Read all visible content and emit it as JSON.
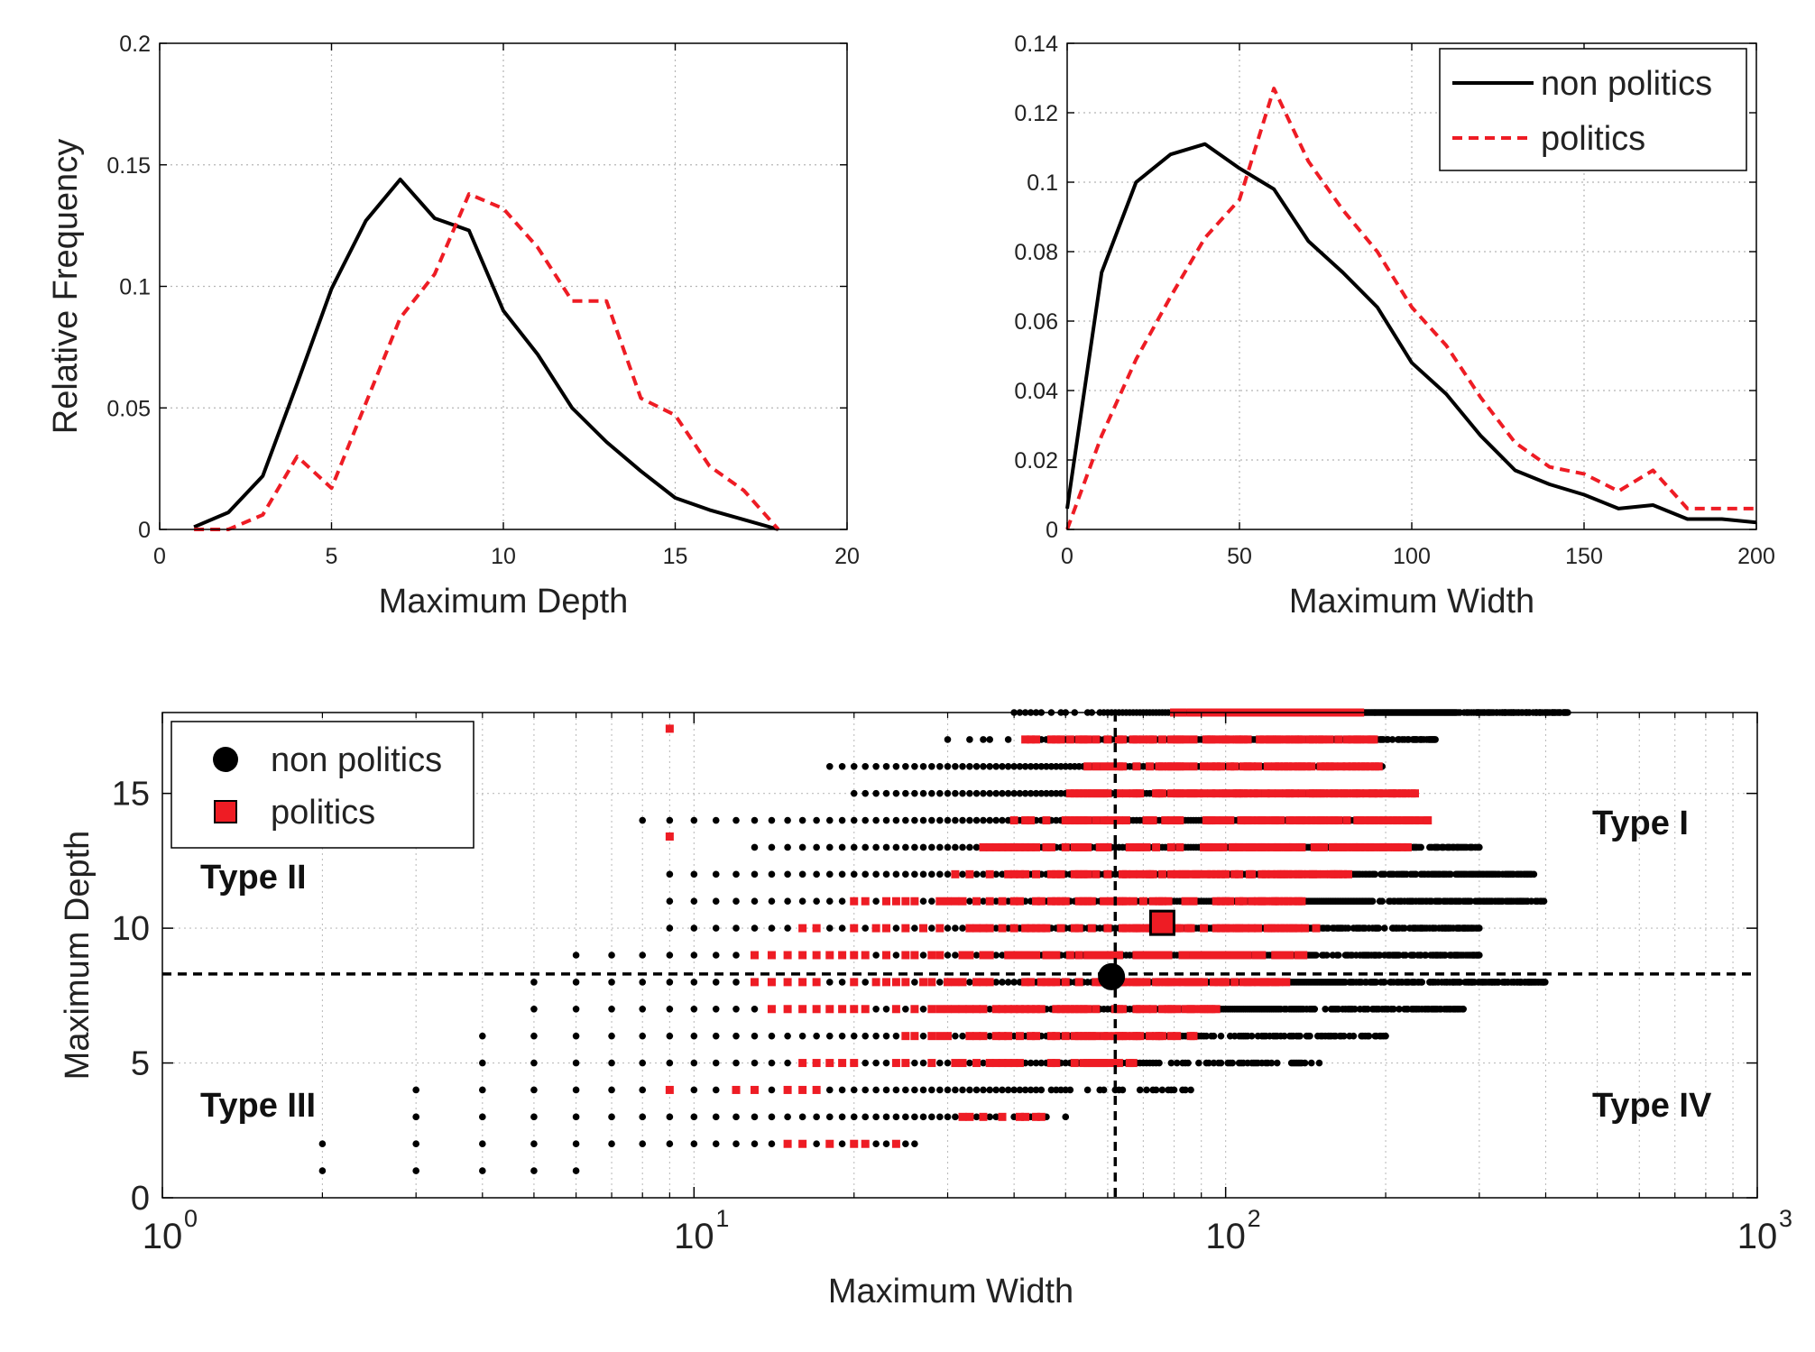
{
  "chart_data": [
    {
      "type": "line",
      "xlabel": "Maximum Depth",
      "ylabel": "Relative Frequency",
      "xlim": [
        0,
        20
      ],
      "ylim": [
        0,
        0.2
      ],
      "xticks": [
        0,
        5,
        10,
        15,
        20
      ],
      "yticks": [
        0,
        0.05,
        0.1,
        0.15,
        0.2
      ],
      "xtick_labels": [
        "0",
        "5",
        "10",
        "15",
        "20"
      ],
      "ytick_labels": [
        "0",
        "0.05",
        "0.1",
        "0.15",
        "0.2"
      ],
      "grid": true,
      "series": [
        {
          "name": "non politics",
          "color": "#000000",
          "style": "solid",
          "x": [
            1,
            2,
            3,
            4,
            5,
            6,
            7,
            8,
            9,
            10,
            11,
            12,
            13,
            14,
            15,
            16,
            17,
            18
          ],
          "y": [
            0.001,
            0.007,
            0.022,
            0.06,
            0.099,
            0.127,
            0.144,
            0.128,
            0.123,
            0.09,
            0.072,
            0.05,
            0.036,
            0.024,
            0.013,
            0.008,
            0.004,
            0.0
          ]
        },
        {
          "name": "politics",
          "color": "#ee1c24",
          "style": "dashed",
          "x": [
            1,
            2,
            3,
            4,
            5,
            6,
            7,
            8,
            9,
            10,
            11,
            12,
            13,
            14,
            15,
            16,
            17,
            18
          ],
          "y": [
            0.0,
            0.0,
            0.006,
            0.03,
            0.017,
            0.052,
            0.087,
            0.105,
            0.138,
            0.132,
            0.116,
            0.094,
            0.094,
            0.054,
            0.047,
            0.026,
            0.016,
            0.0
          ]
        }
      ]
    },
    {
      "type": "line",
      "xlabel": "Maximum Width",
      "ylabel": "",
      "xlim": [
        0,
        200
      ],
      "ylim": [
        0,
        0.14
      ],
      "xticks": [
        0,
        50,
        100,
        150,
        200
      ],
      "yticks": [
        0,
        0.02,
        0.04,
        0.06,
        0.08,
        0.1,
        0.12,
        0.14
      ],
      "xtick_labels": [
        "0",
        "50",
        "100",
        "150",
        "200"
      ],
      "ytick_labels": [
        "0",
        "0.02",
        "0.04",
        "0.06",
        "0.08",
        "0.1",
        "0.12",
        "0.14"
      ],
      "grid": true,
      "legend": {
        "position": "top-right",
        "entries": [
          {
            "label": "non politics",
            "color": "#000000",
            "style": "solid"
          },
          {
            "label": "politics",
            "color": "#ee1c24",
            "style": "dashed"
          }
        ]
      },
      "series": [
        {
          "name": "non politics",
          "color": "#000000",
          "style": "solid",
          "x": [
            0,
            10,
            20,
            30,
            40,
            50,
            60,
            70,
            80,
            90,
            100,
            110,
            120,
            130,
            140,
            150,
            160,
            170,
            180,
            190,
            200
          ],
          "y": [
            0.006,
            0.074,
            0.1,
            0.108,
            0.111,
            0.104,
            0.098,
            0.083,
            0.074,
            0.064,
            0.048,
            0.039,
            0.027,
            0.017,
            0.013,
            0.01,
            0.006,
            0.007,
            0.003,
            0.003,
            0.002
          ]
        },
        {
          "name": "politics",
          "color": "#ee1c24",
          "style": "dashed",
          "x": [
            0,
            10,
            20,
            30,
            40,
            50,
            60,
            70,
            80,
            90,
            100,
            110,
            120,
            130,
            140,
            150,
            160,
            170,
            180,
            190,
            200
          ],
          "y": [
            0.0,
            0.027,
            0.049,
            0.067,
            0.084,
            0.095,
            0.127,
            0.106,
            0.092,
            0.08,
            0.064,
            0.053,
            0.038,
            0.025,
            0.018,
            0.016,
            0.011,
            0.017,
            0.006,
            0.006,
            0.006
          ]
        }
      ]
    },
    {
      "type": "scatter",
      "xscale": "log",
      "xlabel": "Maximum Width",
      "ylabel": "Maximum Depth",
      "xlim": [
        1,
        1000
      ],
      "ylim": [
        0,
        18
      ],
      "xticks": [
        1,
        10,
        100,
        1000
      ],
      "yticks": [
        0,
        5,
        10,
        15
      ],
      "xtick_base": "10",
      "xtick_exponents": [
        "0",
        "1",
        "2",
        "3"
      ],
      "ytick_labels": [
        "0",
        "5",
        "10",
        "15"
      ],
      "grid": true,
      "legend": {
        "position": "top-left",
        "entries": [
          {
            "label": "non politics",
            "color": "#000000",
            "marker": "circle"
          },
          {
            "label": "politics",
            "color": "#ee1c24",
            "marker": "square"
          }
        ]
      },
      "annotations": [
        "Type I",
        "Type II",
        "Type III",
        "Type IV"
      ],
      "reference_lines": {
        "vertical_x": 62,
        "horizontal_y": 8.3
      },
      "means": [
        {
          "name": "non politics",
          "x": 61,
          "y": 8.2,
          "color": "#000000",
          "marker": "circle"
        },
        {
          "name": "politics",
          "x": 76,
          "y": 10.2,
          "color": "#ee1c24",
          "marker": "square"
        }
      ],
      "series": [
        {
          "name": "non politics",
          "color": "#000000",
          "marker": "circle",
          "row_ranges": [
            {
              "depth": 1,
              "min_width": 2,
              "max_width": 6
            },
            {
              "depth": 2,
              "min_width": 2,
              "max_width": 26
            },
            {
              "depth": 3,
              "min_width": 3,
              "max_width": 50
            },
            {
              "depth": 4,
              "min_width": 3,
              "max_width": 90
            },
            {
              "depth": 5,
              "min_width": 4,
              "max_width": 150
            },
            {
              "depth": 6,
              "min_width": 4,
              "max_width": 200
            },
            {
              "depth": 7,
              "min_width": 5,
              "max_width": 280
            },
            {
              "depth": 8,
              "min_width": 5,
              "max_width": 400
            },
            {
              "depth": 9,
              "min_width": 6,
              "max_width": 300
            },
            {
              "depth": 10,
              "min_width": 9,
              "max_width": 300
            },
            {
              "depth": 11,
              "min_width": 9,
              "max_width": 400
            },
            {
              "depth": 12,
              "min_width": 9,
              "max_width": 380
            },
            {
              "depth": 13,
              "min_width": 13,
              "max_width": 300
            },
            {
              "depth": 14,
              "min_width": 8,
              "max_width": 240
            },
            {
              "depth": 15,
              "min_width": 20,
              "max_width": 200
            },
            {
              "depth": 16,
              "min_width": 18,
              "max_width": 200
            },
            {
              "depth": 17,
              "min_width": 30,
              "max_width": 250
            },
            {
              "depth": 18,
              "min_width": 40,
              "max_width": 440
            }
          ]
        },
        {
          "name": "politics",
          "color": "#ee1c24",
          "marker": "square",
          "row_ranges": [
            {
              "depth": 2,
              "min_width": 13,
              "max_width": 26
            },
            {
              "depth": 3,
              "min_width": 30,
              "max_width": 45
            },
            {
              "depth": 4,
              "min_width": 8,
              "max_width": 18
            },
            {
              "depth": 5,
              "min_width": 15,
              "max_width": 70
            },
            {
              "depth": 6,
              "min_width": 25,
              "max_width": 90
            },
            {
              "depth": 7,
              "min_width": 13,
              "max_width": 100
            },
            {
              "depth": 8,
              "min_width": 12,
              "max_width": 130
            },
            {
              "depth": 9,
              "min_width": 12,
              "max_width": 140
            },
            {
              "depth": 10,
              "min_width": 16,
              "max_width": 150
            },
            {
              "depth": 11,
              "min_width": 20,
              "max_width": 140
            },
            {
              "depth": 12,
              "min_width": 30,
              "max_width": 170
            },
            {
              "depth": 13,
              "min_width": 35,
              "max_width": 220
            },
            {
              "depth": 14,
              "min_width": 40,
              "max_width": 240
            },
            {
              "depth": 15,
              "min_width": 50,
              "max_width": 230
            },
            {
              "depth": 16,
              "min_width": 55,
              "max_width": 200
            },
            {
              "depth": 17,
              "min_width": 40,
              "max_width": 190
            },
            {
              "depth": 18,
              "min_width": 80,
              "max_width": 180
            }
          ],
          "outliers": [
            {
              "x": 9,
              "y": 17.4
            },
            {
              "x": 9,
              "y": 13.4
            }
          ]
        }
      ]
    }
  ]
}
